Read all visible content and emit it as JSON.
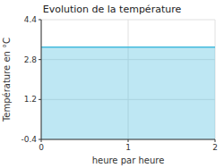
{
  "chart_data": {
    "type": "area",
    "title": "Evolution de la température",
    "x_label": "heure par heure",
    "y_label": "Température en °C",
    "x": [
      0,
      2
    ],
    "values": [
      3.3,
      3.3
    ],
    "color": "#44bbdd",
    "xlim": [
      0,
      2
    ],
    "ylim": [
      -0.4,
      4.4
    ],
    "xticks": [
      0,
      1,
      2
    ],
    "yticks": [
      -0.4,
      1.2,
      2.8,
      4.4
    ],
    "grid": true
  }
}
